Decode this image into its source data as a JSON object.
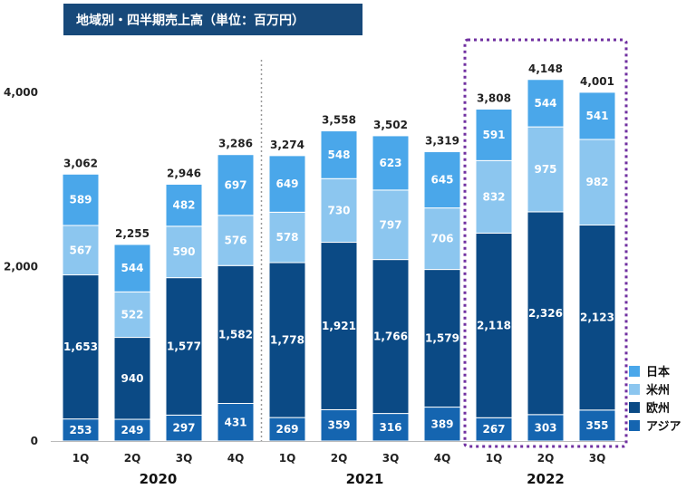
{
  "chart_data": {
    "type": "bar",
    "stacked": true,
    "title": "地域別・四半期売上高（単位：百万円）",
    "categories": [
      "1Q",
      "2Q",
      "3Q",
      "4Q",
      "1Q",
      "2Q",
      "3Q",
      "4Q",
      "1Q",
      "2Q",
      "3Q"
    ],
    "years": [
      {
        "label": "2020",
        "from": 0,
        "to": 3
      },
      {
        "label": "2021",
        "from": 4,
        "to": 7
      },
      {
        "label": "2022",
        "from": 8,
        "to": 10
      }
    ],
    "series": [
      {
        "name": "アジア",
        "color": "#1565b0",
        "values": [
          253,
          249,
          297,
          431,
          269,
          359,
          316,
          389,
          267,
          303,
          355
        ]
      },
      {
        "name": "欧州",
        "color": "#0b4a85",
        "values": [
          1653,
          940,
          1577,
          1582,
          1778,
          1921,
          1766,
          1579,
          2118,
          2326,
          2123
        ]
      },
      {
        "name": "米州",
        "color": "#8cc6ef",
        "values": [
          567,
          522,
          590,
          576,
          578,
          730,
          797,
          706,
          832,
          975,
          982
        ]
      },
      {
        "name": "日本",
        "color": "#4aa7ea",
        "values": [
          589,
          544,
          482,
          697,
          649,
          548,
          623,
          645,
          591,
          544,
          541
        ]
      }
    ],
    "totals": [
      "3,062",
      "2,255",
      "2,946",
      "3,286",
      "3,274",
      "3,558",
      "3,502",
      "3,319",
      "3,808",
      "4,148",
      "4,001"
    ],
    "labels": {
      "アジア": [
        "253",
        "249",
        "297",
        "431",
        "269",
        "359",
        "316",
        "389",
        "267",
        "303",
        "355"
      ],
      "欧州": [
        "1,653",
        "940",
        "1,577",
        "1,582",
        "1,778",
        "1,921",
        "1,766",
        "1,579",
        "2,118",
        "2,326",
        "2,123"
      ],
      "米州": [
        "567",
        "522",
        "590",
        "576",
        "578",
        "730",
        "797",
        "706",
        "832",
        "975",
        "982"
      ],
      "日本": [
        "589",
        "544",
        "482",
        "697",
        "649",
        "548",
        "623",
        "645",
        "591",
        "544",
        "541"
      ]
    },
    "yticks": [
      {
        "value": 0,
        "label": "0"
      },
      {
        "value": 2000,
        "label": "2,000"
      },
      {
        "value": 4000,
        "label": "4,000"
      }
    ],
    "ylim": [
      0,
      4000
    ],
    "legend": [
      "日本",
      "米州",
      "欧州",
      "アジア"
    ],
    "legend_position": "bottom-right",
    "highlight_group": "2022",
    "grid": false
  }
}
